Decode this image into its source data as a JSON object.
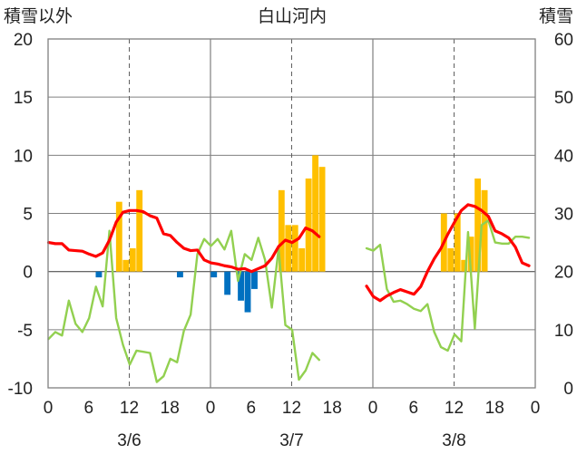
{
  "chart_data": {
    "type": "bar+line",
    "title": "白山河内",
    "left_axis_label": "積雪以外",
    "right_axis_label": "積雪",
    "left_ylim": [
      -10,
      20
    ],
    "left_yticks": [
      "20",
      "15",
      "10",
      "5",
      "0",
      "-5",
      "-10"
    ],
    "right_ylim": [
      0,
      60
    ],
    "right_yticks": [
      "60",
      "50",
      "40",
      "30",
      "20",
      "10",
      "0"
    ],
    "x_tick_labels": [
      "0",
      "6",
      "12",
      "18",
      "0",
      "6",
      "12",
      "18",
      "0",
      "6",
      "12",
      "18",
      "0"
    ],
    "dates": [
      "3/6",
      "3/7",
      "3/8"
    ],
    "colors": {
      "precip": "#ffc000",
      "negative": "#0070c0",
      "temperature": "#92d050",
      "snow_depth": "#ff0000",
      "axis": "#808080"
    },
    "series": [
      {
        "name": "precipitation",
        "kind": "bar",
        "axis": "left",
        "points": [
          [
            10,
            6
          ],
          [
            11,
            1
          ],
          [
            12,
            2
          ],
          [
            13,
            7
          ],
          [
            34,
            7
          ],
          [
            35,
            4
          ],
          [
            36,
            4
          ],
          [
            37,
            2
          ],
          [
            38,
            8
          ],
          [
            39,
            10
          ],
          [
            40,
            9
          ],
          [
            58,
            5
          ],
          [
            59,
            2
          ],
          [
            60,
            5
          ],
          [
            61,
            1
          ],
          [
            62,
            3
          ],
          [
            63,
            8
          ],
          [
            64,
            7
          ]
        ]
      },
      {
        "name": "negative",
        "kind": "bar",
        "axis": "left",
        "points": [
          [
            7,
            -0.5
          ],
          [
            19,
            -0.5
          ],
          [
            24,
            -0.5
          ],
          [
            26,
            -2
          ],
          [
            28,
            -2.5
          ],
          [
            29,
            -3.5
          ],
          [
            30,
            -1.5
          ]
        ]
      },
      {
        "name": "temperature",
        "kind": "line",
        "axis": "left",
        "segments": [
          [
            [
              0,
              -5.8
            ],
            [
              1,
              -5.2
            ],
            [
              2,
              -5.5
            ],
            [
              3,
              -2.5
            ],
            [
              4,
              -4.5
            ],
            [
              5,
              -5.2
            ],
            [
              6,
              -4
            ],
            [
              7,
              -1.3
            ],
            [
              8,
              -3
            ],
            [
              9,
              3.5
            ],
            [
              10,
              -4
            ],
            [
              11,
              -6.3
            ],
            [
              12,
              -8
            ],
            [
              13,
              -6.8
            ],
            [
              14,
              -6.9
            ],
            [
              15,
              -7
            ],
            [
              16,
              -9.5
            ],
            [
              17,
              -9
            ],
            [
              18,
              -7.5
            ],
            [
              19,
              -7.8
            ],
            [
              20,
              -5.1
            ],
            [
              21,
              -3.7
            ],
            [
              22,
              1.5
            ],
            [
              23,
              2.8
            ],
            [
              24,
              2.2
            ],
            [
              25,
              2.8
            ],
            [
              26,
              1.9
            ],
            [
              27,
              3.5
            ],
            [
              28,
              -0.8
            ],
            [
              29,
              1.5
            ],
            [
              30,
              1
            ],
            [
              31,
              2.9
            ],
            [
              32,
              1
            ],
            [
              33,
              -3.1
            ],
            [
              34,
              2
            ],
            [
              35,
              -4.6
            ],
            [
              36,
              -5
            ],
            [
              37,
              -9.3
            ],
            [
              38,
              -8.5
            ],
            [
              39,
              -7
            ],
            [
              40,
              -7.6
            ]
          ],
          [
            [
              47,
              2
            ],
            [
              48,
              1.8
            ],
            [
              49,
              2.3
            ],
            [
              50,
              -1.5
            ],
            [
              51,
              -2.6
            ],
            [
              52,
              -2.5
            ],
            [
              53,
              -2.8
            ],
            [
              54,
              -3.2
            ],
            [
              55,
              -3.4
            ],
            [
              56,
              -2.8
            ],
            [
              57,
              -5.2
            ],
            [
              58,
              -6.5
            ],
            [
              59,
              -6.8
            ],
            [
              60,
              -5.4
            ],
            [
              61,
              -6
            ],
            [
              62,
              3.4
            ],
            [
              63,
              -4.9
            ],
            [
              64,
              4
            ],
            [
              65,
              4.4
            ],
            [
              66,
              2.5
            ],
            [
              67,
              2.4
            ],
            [
              68,
              2.4
            ],
            [
              69,
              3
            ],
            [
              70,
              3
            ],
            [
              71,
              2.9
            ]
          ]
        ]
      },
      {
        "name": "snow_depth",
        "kind": "line",
        "axis": "right",
        "segments": [
          [
            [
              0,
              25
            ],
            [
              1,
              24.8
            ],
            [
              2,
              24.8
            ],
            [
              3,
              23.7
            ],
            [
              4,
              23.6
            ],
            [
              5,
              23.5
            ],
            [
              6,
              23
            ],
            [
              7,
              22.6
            ],
            [
              8,
              23.2
            ],
            [
              9,
              25.4
            ],
            [
              10,
              28.5
            ],
            [
              11,
              30.2
            ],
            [
              12,
              30.5
            ],
            [
              13,
              30.5
            ],
            [
              14,
              30.3
            ],
            [
              15,
              29.6
            ],
            [
              16,
              29.2
            ],
            [
              17,
              26.5
            ],
            [
              18,
              26.2
            ],
            [
              19,
              25
            ],
            [
              20,
              24
            ],
            [
              21,
              23.6
            ],
            [
              22,
              23.7
            ],
            [
              23,
              22
            ],
            [
              24,
              21.5
            ],
            [
              25,
              21.3
            ],
            [
              26,
              21
            ],
            [
              27,
              20.8
            ],
            [
              28,
              20.4
            ],
            [
              29,
              20.5
            ],
            [
              30,
              20
            ],
            [
              31,
              20.5
            ],
            [
              32,
              21
            ],
            [
              33,
              22.3
            ],
            [
              34,
              24.3
            ],
            [
              35,
              25.4
            ],
            [
              36,
              25
            ],
            [
              37,
              25.7
            ],
            [
              38,
              27.5
            ],
            [
              39,
              27
            ],
            [
              40,
              26
            ]
          ],
          [
            [
              47,
              17.5
            ],
            [
              48,
              15.7
            ],
            [
              49,
              15
            ],
            [
              50,
              15.8
            ],
            [
              51,
              16.4
            ],
            [
              52,
              16.9
            ],
            [
              53,
              16.5
            ],
            [
              54,
              16.1
            ],
            [
              55,
              17.4
            ],
            [
              56,
              20
            ],
            [
              57,
              22.2
            ],
            [
              58,
              24
            ],
            [
              59,
              26.4
            ],
            [
              60,
              28.5
            ],
            [
              61,
              30.5
            ],
            [
              62,
              31.5
            ],
            [
              63,
              31.2
            ],
            [
              64,
              30.5
            ],
            [
              65,
              29.5
            ],
            [
              66,
              27
            ],
            [
              67,
              26.5
            ],
            [
              68,
              25.8
            ],
            [
              69,
              24.2
            ],
            [
              70,
              21.5
            ],
            [
              71,
              21
            ]
          ]
        ]
      }
    ]
  }
}
